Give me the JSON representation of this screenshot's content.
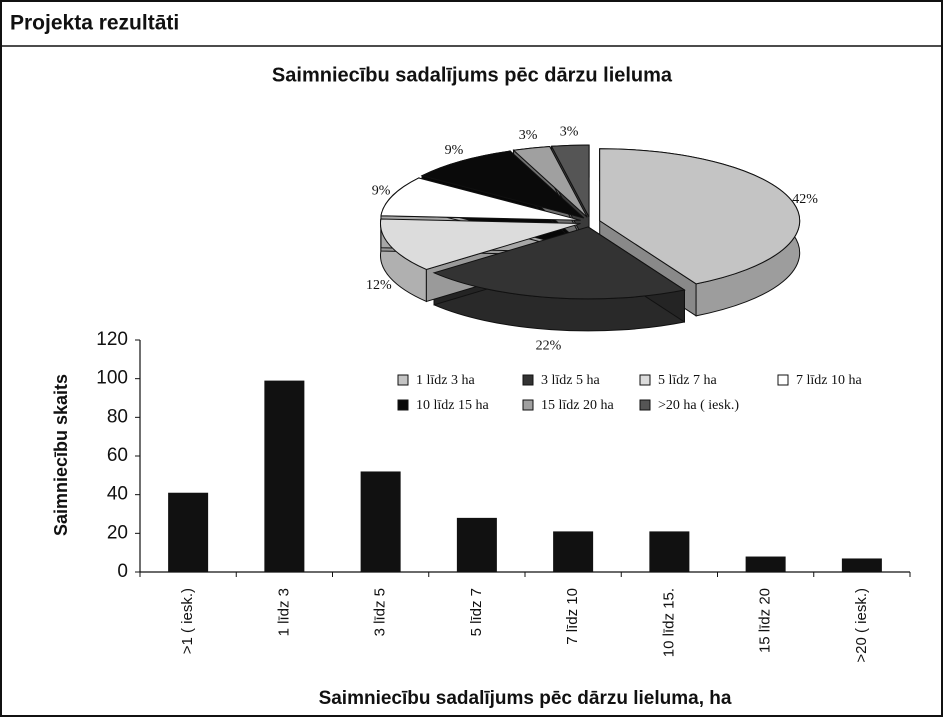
{
  "header": {
    "title": "Projekta rezultāti"
  },
  "chart_data": [
    {
      "type": "pie",
      "title": "Saimniecību sadalījums pēc dārzu lieluma",
      "categories": [
        "1 līdz 3 ha",
        "3 līdz 5 ha",
        "5 līdz 7 ha",
        "7 līdz 10 ha",
        "10 līdz 15 ha",
        "15 līdz 20 ha",
        ">20 ha ( iesk.)"
      ],
      "values": [
        42,
        22,
        12,
        9,
        9,
        3,
        3
      ],
      "value_labels": [
        "42%",
        "22%",
        "12%",
        "9%",
        "9%",
        "3%",
        "3%"
      ],
      "colors": [
        "#c4c4c4",
        "#333333",
        "#dcdcdc",
        "#ffffff",
        "#0a0a0a",
        "#a0a0a0",
        "#555555"
      ],
      "legend": "bottom"
    },
    {
      "type": "bar",
      "categories": [
        ">1 ( iesk.)",
        "1 līdz 3",
        "3 līdz 5",
        "5 līdz 7",
        "7 līdz 10",
        "10 līdz 15.",
        "15 līdz 20",
        ">20 ( iesk.)"
      ],
      "values": [
        41,
        99,
        52,
        28,
        21,
        21,
        8,
        7
      ],
      "color": "#111111",
      "ylabel": "Saimniecību skaits",
      "xlabel": "Saimniecību sadalījums pēc dārzu lieluma, ha",
      "ylim": [
        0,
        120
      ],
      "yticks": [
        0,
        20,
        40,
        60,
        80,
        100,
        120
      ],
      "grid": false
    }
  ]
}
